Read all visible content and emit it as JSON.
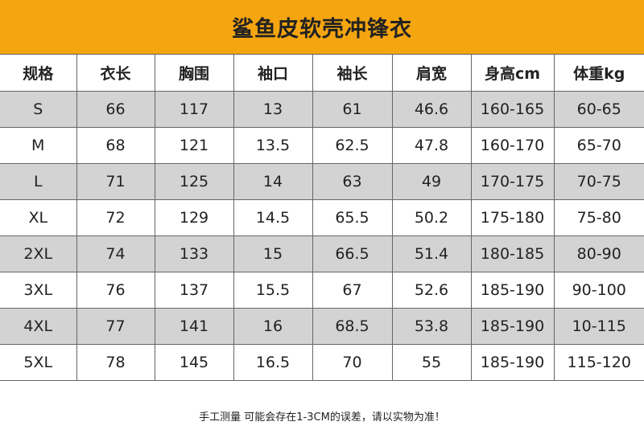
{
  "title": "鲨鱼皮软壳冲锋衣",
  "table": {
    "header": [
      "规格",
      "衣长",
      "胸围",
      "袖口",
      "袖长",
      "肩宽",
      "身高cm",
      "体重kg"
    ],
    "rows": [
      [
        "S",
        "66",
        "117",
        "13",
        "61",
        "46.6",
        "160-165",
        "60-65"
      ],
      [
        "M",
        "68",
        "121",
        "13.5",
        "62.5",
        "47.8",
        "160-170",
        "65-70"
      ],
      [
        "L",
        "71",
        "125",
        "14",
        "63",
        "49",
        "170-175",
        "70-75"
      ],
      [
        "XL",
        "72",
        "129",
        "14.5",
        "65.5",
        "50.2",
        "175-180",
        "75-80"
      ],
      [
        "2XL",
        "74",
        "133",
        "15",
        "66.5",
        "51.4",
        "180-185",
        "80-90"
      ],
      [
        "3XL",
        "76",
        "137",
        "15.5",
        "67",
        "52.6",
        "185-190",
        "90-100"
      ],
      [
        "4XL",
        "77",
        "141",
        "16",
        "68.5",
        "53.8",
        "185-190",
        "10-115"
      ],
      [
        "5XL",
        "78",
        "145",
        "16.5",
        "70",
        "55",
        "185-190",
        "115-120"
      ]
    ]
  },
  "note": "手工测量 可能会存在1-3CM的误差，请以实物为准！"
}
